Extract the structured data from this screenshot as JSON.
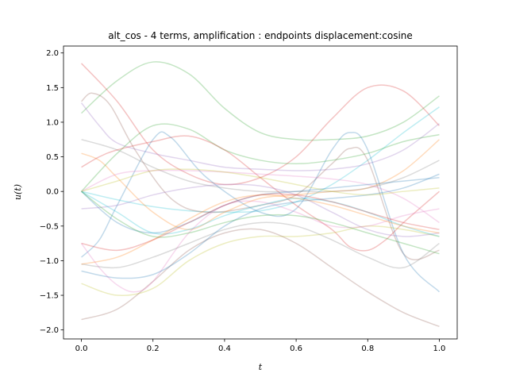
{
  "chart_data": {
    "type": "line",
    "title": "alt_cos - 4 terms, amplification : endpoints displacement:cosine",
    "xlabel": "t",
    "ylabel": "u(t)",
    "xlim": [
      -0.05,
      1.05
    ],
    "ylim": [
      -2.13,
      2.1
    ],
    "xticks": [
      0.0,
      0.2,
      0.4,
      0.6,
      0.8,
      1.0
    ],
    "xtick_labels": [
      "0.0",
      "0.2",
      "0.4",
      "0.6",
      "0.8",
      "1.0"
    ],
    "yticks": [
      -2.0,
      -1.5,
      -1.0,
      -0.5,
      0.0,
      0.5,
      1.0,
      1.5,
      2.0
    ],
    "ytick_labels": [
      "−2.0",
      "−1.5",
      "−1.0",
      "−0.5",
      "0.0",
      "0.5",
      "1.0",
      "1.5",
      "2.0"
    ],
    "grid": false,
    "legend": "none",
    "line_opacity": 0.28,
    "series": [
      {
        "color": "#2ca02c",
        "x": [
          0,
          0.1,
          0.2,
          0.3,
          0.4,
          0.5,
          0.6,
          0.7,
          0.8,
          0.9,
          1.0
        ],
        "y": [
          1.13,
          1.6,
          1.87,
          1.7,
          1.2,
          0.85,
          0.75,
          0.75,
          0.8,
          1.0,
          1.38
        ]
      },
      {
        "color": "#d62728",
        "x": [
          0,
          0.1,
          0.2,
          0.3,
          0.4,
          0.5,
          0.6,
          0.7,
          0.8,
          0.9,
          1.0
        ],
        "y": [
          1.85,
          1.3,
          0.6,
          0.25,
          0.1,
          0.2,
          0.5,
          1.05,
          1.5,
          1.45,
          0.95
        ]
      },
      {
        "color": "#17becf",
        "x": [
          0,
          0.1,
          0.2,
          0.3,
          0.4,
          0.5,
          0.6,
          0.7,
          0.8,
          0.9,
          1.0
        ],
        "y": [
          0.0,
          -0.12,
          -0.22,
          -0.28,
          -0.3,
          -0.28,
          -0.15,
          0.1,
          0.45,
          0.85,
          1.22
        ]
      },
      {
        "color": "#9467bd",
        "x": [
          0,
          0.05,
          0.1,
          0.2,
          0.3,
          0.4,
          0.5,
          0.6,
          0.7,
          0.8,
          0.9,
          1.0
        ],
        "y": [
          1.28,
          0.95,
          0.7,
          0.55,
          0.45,
          0.35,
          0.32,
          0.3,
          0.32,
          0.4,
          0.6,
          0.98
        ]
      },
      {
        "color": "#8c564b",
        "x": [
          0,
          0.03,
          0.08,
          0.15,
          0.25,
          0.35,
          0.5,
          0.6,
          0.7,
          0.75,
          0.8,
          0.9,
          1.0
        ],
        "y": [
          1.3,
          1.42,
          1.25,
          0.6,
          -0.1,
          -0.3,
          -0.2,
          -0.05,
          0.4,
          0.62,
          0.45,
          -0.9,
          -0.85
        ]
      },
      {
        "color": "#1f77b4",
        "x": [
          0,
          0.05,
          0.1,
          0.2,
          0.25,
          0.35,
          0.5,
          0.6,
          0.7,
          0.75,
          0.8,
          0.9,
          1.0
        ],
        "y": [
          -0.95,
          -0.7,
          -0.2,
          0.75,
          0.78,
          0.2,
          -0.3,
          -0.25,
          0.6,
          0.85,
          0.6,
          -0.9,
          -1.45
        ]
      },
      {
        "color": "#ff7f0e",
        "x": [
          0,
          0.05,
          0.1,
          0.2,
          0.3,
          0.4,
          0.5,
          0.6,
          0.7,
          0.8,
          0.9,
          1.0
        ],
        "y": [
          0.55,
          0.45,
          0.2,
          -0.3,
          -0.55,
          -0.3,
          -0.1,
          -0.05,
          0.0,
          0.05,
          0.3,
          0.75
        ]
      },
      {
        "color": "#2ca02c",
        "x": [
          0,
          0.1,
          0.2,
          0.3,
          0.4,
          0.5,
          0.6,
          0.7,
          0.8,
          0.9,
          1.0
        ],
        "y": [
          0.0,
          0.55,
          0.95,
          0.9,
          0.6,
          0.45,
          0.4,
          0.45,
          0.55,
          0.72,
          0.82
        ]
      },
      {
        "color": "#7f7f7f",
        "x": [
          0,
          0.1,
          0.2,
          0.3,
          0.4,
          0.5,
          0.6,
          0.7,
          0.8,
          0.9,
          1.0
        ],
        "y": [
          0.75,
          0.6,
          0.35,
          0.15,
          0.05,
          0.0,
          0.0,
          0.0,
          0.05,
          0.2,
          0.45
        ]
      },
      {
        "color": "#d62728",
        "x": [
          0,
          0.05,
          0.1,
          0.2,
          0.3,
          0.4,
          0.5,
          0.6,
          0.7,
          0.75,
          0.8,
          0.85,
          0.9,
          1.0
        ],
        "y": [
          0.35,
          0.5,
          0.6,
          0.72,
          0.8,
          0.6,
          0.2,
          -0.2,
          -0.55,
          -0.8,
          -0.85,
          -0.7,
          -0.45,
          0.0
        ]
      },
      {
        "color": "#e377c2",
        "x": [
          0,
          0.1,
          0.2,
          0.3,
          0.4,
          0.5,
          0.6,
          0.7,
          0.8,
          0.9,
          1.0
        ],
        "y": [
          0.0,
          0.25,
          0.3,
          0.3,
          0.28,
          0.25,
          0.22,
          0.18,
          0.1,
          -0.1,
          -0.45
        ]
      },
      {
        "color": "#1f77b4",
        "x": [
          0,
          0.1,
          0.2,
          0.3,
          0.4,
          0.5,
          0.6,
          0.7,
          0.8,
          0.9,
          1.0
        ],
        "y": [
          0.0,
          -0.45,
          -0.6,
          -0.45,
          -0.2,
          -0.05,
          0.0,
          0.05,
          0.1,
          0.15,
          0.2
        ]
      },
      {
        "color": "#bcbd22",
        "x": [
          0,
          0.1,
          0.2,
          0.3,
          0.4,
          0.5,
          0.6,
          0.7,
          0.8,
          0.9,
          1.0
        ],
        "y": [
          -1.33,
          -1.5,
          -1.4,
          -1.0,
          -0.75,
          -0.65,
          -0.65,
          -0.6,
          -0.5,
          -0.55,
          -0.65
        ]
      },
      {
        "color": "#9467bd",
        "x": [
          0,
          0.1,
          0.2,
          0.3,
          0.4,
          0.5,
          0.6,
          0.7,
          0.8,
          0.9,
          1.0
        ],
        "y": [
          -0.25,
          -0.2,
          -0.05,
          0.05,
          0.1,
          0.08,
          -0.05,
          -0.3,
          -0.55,
          -0.65,
          -0.6
        ]
      },
      {
        "color": "#8c564b",
        "x": [
          0,
          0.1,
          0.2,
          0.3,
          0.4,
          0.5,
          0.6,
          0.7,
          0.8,
          0.9,
          1.0
        ],
        "y": [
          -1.85,
          -1.7,
          -1.3,
          -0.85,
          -0.6,
          -0.55,
          -0.75,
          -1.1,
          -1.45,
          -1.75,
          -1.95
        ]
      },
      {
        "color": "#e377c2",
        "x": [
          0,
          0.05,
          0.1,
          0.15,
          0.2,
          0.3,
          0.4,
          0.5,
          0.6,
          0.7,
          0.8,
          0.9,
          1.0
        ],
        "y": [
          -0.75,
          -1.1,
          -1.35,
          -1.45,
          -1.3,
          -0.6,
          -0.2,
          -0.15,
          -0.3,
          -0.5,
          -0.5,
          -0.35,
          -0.25
        ]
      },
      {
        "color": "#7f7f7f",
        "x": [
          0,
          0.1,
          0.2,
          0.3,
          0.4,
          0.5,
          0.6,
          0.7,
          0.8,
          0.9,
          1.0
        ],
        "y": [
          -1.05,
          -1.1,
          -0.95,
          -0.75,
          -0.55,
          -0.45,
          -0.5,
          -0.7,
          -0.95,
          -1.1,
          -0.75
        ]
      },
      {
        "color": "#17becf",
        "x": [
          0,
          0.1,
          0.2,
          0.3,
          0.4,
          0.5,
          0.6,
          0.7,
          0.8,
          0.9,
          1.0
        ],
        "y": [
          0.0,
          -0.3,
          -0.6,
          -0.55,
          -0.35,
          -0.2,
          -0.1,
          -0.15,
          -0.3,
          -0.5,
          -0.65
        ]
      },
      {
        "color": "#ff7f0e",
        "x": [
          0,
          0.1,
          0.2,
          0.3,
          0.4,
          0.5,
          0.6,
          0.7,
          0.8,
          0.9,
          1.0
        ],
        "y": [
          -1.05,
          -0.95,
          -0.7,
          -0.4,
          -0.15,
          -0.05,
          -0.1,
          -0.2,
          -0.35,
          -0.5,
          -0.6
        ]
      },
      {
        "color": "#1f77b4",
        "x": [
          0,
          0.1,
          0.2,
          0.3,
          0.4,
          0.5,
          0.6,
          0.7,
          0.8,
          0.9,
          1.0
        ],
        "y": [
          -1.15,
          -1.25,
          -1.2,
          -0.9,
          -0.5,
          -0.25,
          -0.15,
          -0.1,
          -0.05,
          0.05,
          0.25
        ]
      },
      {
        "color": "#d62728",
        "x": [
          0,
          0.1,
          0.2,
          0.3,
          0.4,
          0.5,
          0.6,
          0.7,
          0.8,
          0.9,
          1.0
        ],
        "y": [
          -0.75,
          -0.85,
          -0.7,
          -0.45,
          -0.2,
          -0.05,
          -0.05,
          -0.15,
          -0.3,
          -0.45,
          -0.55
        ]
      },
      {
        "color": "#2ca02c",
        "x": [
          0,
          0.1,
          0.2,
          0.3,
          0.4,
          0.5,
          0.6,
          0.7,
          0.8,
          0.9,
          1.0
        ],
        "y": [
          0.0,
          -0.4,
          -0.65,
          -0.6,
          -0.45,
          -0.35,
          -0.35,
          -0.45,
          -0.6,
          -0.75,
          -0.9
        ]
      },
      {
        "color": "#bcbd22",
        "x": [
          0,
          0.1,
          0.2,
          0.3,
          0.4,
          0.5,
          0.6,
          0.7,
          0.8,
          0.9,
          1.0
        ],
        "y": [
          0.0,
          0.15,
          0.3,
          0.32,
          0.28,
          0.2,
          0.1,
          0.0,
          -0.05,
          0.0,
          0.05
        ]
      }
    ]
  }
}
